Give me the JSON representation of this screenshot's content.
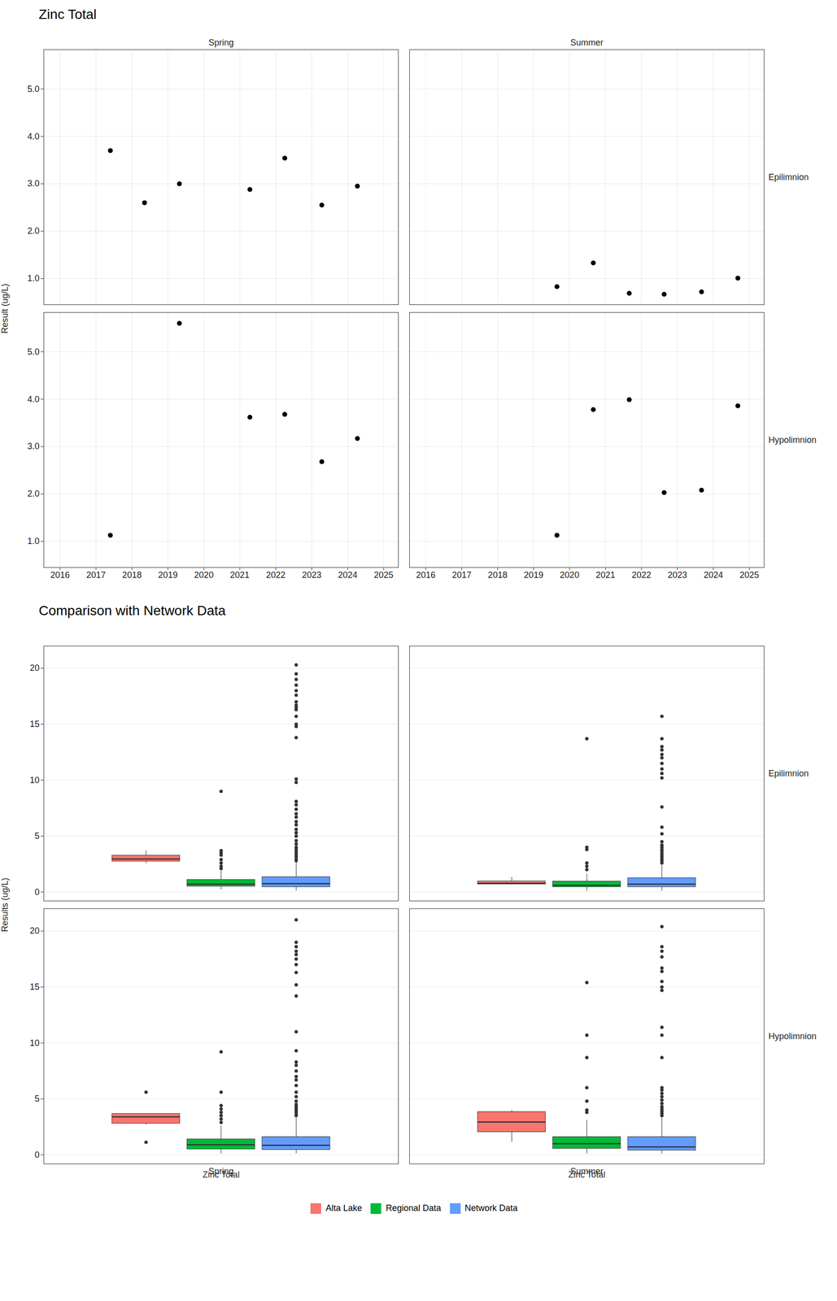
{
  "chart_data": [
    {
      "type": "scatter",
      "title": "Zinc Total",
      "ylabel": "Result (ug/L)",
      "facet_columns": [
        "Spring",
        "Summer"
      ],
      "facet_rows": [
        "Epilimnion",
        "Hypolimnion"
      ],
      "color": "#000000",
      "marker": "circle",
      "grid": true,
      "xlim": [
        2015.55,
        2025.41
      ],
      "xticks": [
        2016,
        2017,
        2018,
        2019,
        2020,
        2021,
        2022,
        2023,
        2024,
        2025
      ],
      "ylim": [
        0.45,
        5.83
      ],
      "yticks": [
        1,
        2,
        3,
        4,
        5
      ],
      "panels": [
        {
          "column": "Spring",
          "row": "Epilimnion",
          "x": [
            2017.4,
            2018.35,
            2019.32,
            2021.28,
            2022.25,
            2023.28,
            2024.27
          ],
          "values": [
            3.7,
            2.6,
            3.0,
            2.88,
            3.54,
            2.55,
            2.95
          ]
        },
        {
          "column": "Spring",
          "row": "Hypolimnion",
          "x": [
            2017.4,
            2019.32,
            2021.28,
            2022.25,
            2023.28,
            2024.27
          ],
          "values": [
            1.13,
            5.6,
            3.62,
            3.68,
            2.68,
            3.17
          ]
        },
        {
          "column": "Summer",
          "row": "Epilimnion",
          "x": [
            2019.65,
            2020.66,
            2021.66,
            2022.63,
            2023.67,
            2024.68
          ],
          "values": [
            0.83,
            1.33,
            0.69,
            0.67,
            0.72,
            1.01
          ]
        },
        {
          "column": "Summer",
          "row": "Hypolimnion",
          "x": [
            2019.65,
            2020.66,
            2021.66,
            2022.63,
            2023.67,
            2024.68
          ],
          "values": [
            1.13,
            3.78,
            3.99,
            2.03,
            2.08,
            3.86
          ]
        }
      ]
    },
    {
      "type": "box",
      "title": "Comparison with Network Data",
      "ylabel": "Results (ug/L)",
      "categories": [
        "Zinc Total"
      ],
      "facet_columns": [
        "Spring",
        "Summer"
      ],
      "facet_rows": [
        "Epilimnion",
        "Hypolimnion"
      ],
      "legend": "bottom",
      "grid": true,
      "ylim": [
        -0.8,
        22
      ],
      "yticks": [
        0,
        5,
        10,
        15,
        20
      ],
      "series": [
        {
          "name": "Alta Lake",
          "color": "#F8766D"
        },
        {
          "name": "Regional Data",
          "color": "#00BA38"
        },
        {
          "name": "Network Data",
          "color": "#619CFF"
        }
      ],
      "panels": [
        {
          "column": "Spring",
          "row": "Epilimnion",
          "boxes": [
            {
              "q1": 2.74,
              "median": 2.95,
              "q3": 3.27,
              "whisker_low": 2.55,
              "whisker_high": 3.7,
              "outliers": []
            },
            {
              "q1": 0.5,
              "median": 0.7,
              "q3": 1.1,
              "whisker_low": 0.2,
              "whisker_high": 1.9,
              "outliers": [
                2.1,
                2.3,
                2.6,
                2.9,
                3.3,
                3.5,
                3.7,
                9.0
              ]
            },
            {
              "q1": 0.45,
              "median": 0.75,
              "q3": 1.35,
              "whisker_low": 0.1,
              "whisker_high": 2.7,
              "outliers": [
                2.8,
                3.0,
                3.2,
                3.4,
                3.6,
                3.8,
                4.0,
                4.3,
                4.6,
                5.0,
                5.3,
                5.6,
                6.0,
                6.3,
                6.7,
                7.0,
                7.4,
                7.8,
                8.1,
                9.8,
                10.1,
                13.8,
                14.8,
                15.0,
                15.7,
                16.3,
                16.5,
                16.7,
                17.0,
                17.6,
                18.0,
                18.5,
                19.0,
                19.5,
                20.3
              ]
            }
          ]
        },
        {
          "column": "Summer",
          "row": "Epilimnion",
          "boxes": [
            {
              "q1": 0.7,
              "median": 0.78,
              "q3": 0.97,
              "whisker_low": 0.67,
              "whisker_high": 1.33,
              "outliers": []
            },
            {
              "q1": 0.45,
              "median": 0.6,
              "q3": 0.95,
              "whisker_low": 0.1,
              "whisker_high": 1.6,
              "outliers": [
                2.0,
                2.3,
                2.6,
                3.8,
                4.0,
                13.7
              ]
            },
            {
              "q1": 0.45,
              "median": 0.7,
              "q3": 1.25,
              "whisker_low": 0.1,
              "whisker_high": 2.4,
              "outliers": [
                2.6,
                2.8,
                3.0,
                3.2,
                3.4,
                3.6,
                3.8,
                4.0,
                4.2,
                4.5,
                5.2,
                5.8,
                7.6,
                10.2,
                10.6,
                11.0,
                11.5,
                12.0,
                12.3,
                12.7,
                13.0,
                13.7,
                15.7
              ]
            }
          ]
        },
        {
          "column": "Spring",
          "row": "Hypolimnion",
          "boxes": [
            {
              "q1": 2.8,
              "median": 3.4,
              "q3": 3.67,
              "whisker_low": 2.68,
              "whisker_high": 3.68,
              "outliers": [
                1.13,
                5.6
              ]
            },
            {
              "q1": 0.5,
              "median": 0.9,
              "q3": 1.4,
              "whisker_low": 0.1,
              "whisker_high": 2.6,
              "outliers": [
                2.9,
                3.2,
                3.5,
                3.8,
                4.1,
                4.4,
                5.6,
                9.2
              ]
            },
            {
              "q1": 0.45,
              "median": 0.85,
              "q3": 1.6,
              "whisker_low": 0.1,
              "whisker_high": 3.3,
              "outliers": [
                3.5,
                3.7,
                3.9,
                4.1,
                4.3,
                4.5,
                4.8,
                5.2,
                5.6,
                6.2,
                6.7,
                7.0,
                7.5,
                8.0,
                8.3,
                9.3,
                11.0,
                14.2,
                15.2,
                16.3,
                17.0,
                17.5,
                17.9,
                18.2,
                18.6,
                19.0,
                21.0
              ]
            }
          ]
        },
        {
          "column": "Summer",
          "row": "Hypolimnion",
          "boxes": [
            {
              "q1": 2.04,
              "median": 2.93,
              "q3": 3.84,
              "whisker_low": 1.13,
              "whisker_high": 3.99,
              "outliers": []
            },
            {
              "q1": 0.55,
              "median": 1.0,
              "q3": 1.6,
              "whisker_low": 0.1,
              "whisker_high": 3.1,
              "outliers": [
                3.8,
                4.0,
                4.8,
                6.0,
                8.7,
                10.7,
                15.4
              ]
            },
            {
              "q1": 0.4,
              "median": 0.7,
              "q3": 1.6,
              "whisker_low": 0.1,
              "whisker_high": 3.3,
              "outliers": [
                3.5,
                3.7,
                3.9,
                4.1,
                4.3,
                4.6,
                4.9,
                5.2,
                5.5,
                5.8,
                6.0,
                8.7,
                10.7,
                11.4,
                14.7,
                15.0,
                15.5,
                16.4,
                16.7,
                17.7,
                18.2,
                18.6,
                20.4
              ]
            }
          ]
        }
      ]
    }
  ]
}
